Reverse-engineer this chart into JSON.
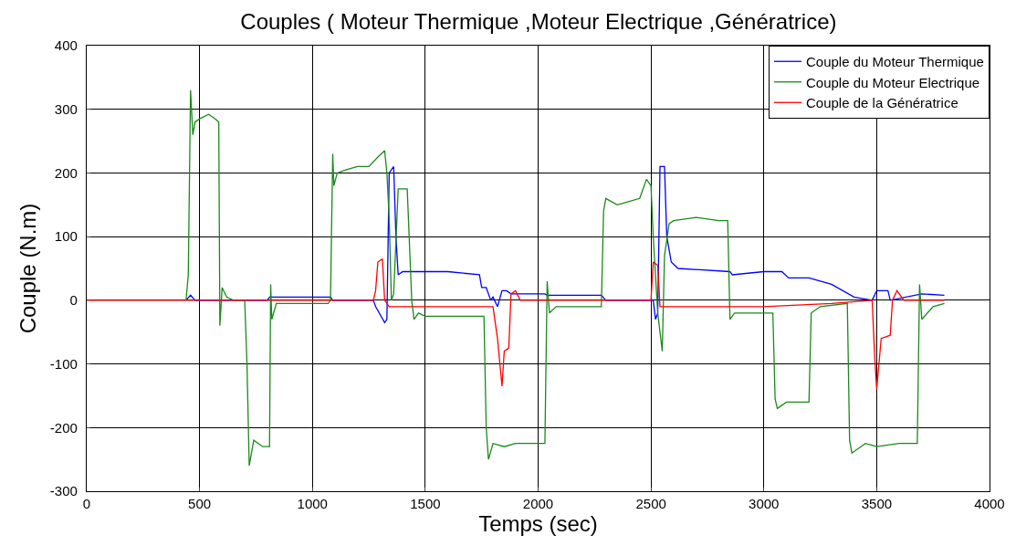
{
  "chart_data": {
    "type": "line",
    "title": "Couples ( Moteur Thermique ,Moteur Electrique ,Génératrice)",
    "xlabel": "Temps (sec)",
    "ylabel": "Couple (N.m)",
    "xlim": [
      0,
      4000
    ],
    "xticks": [
      0,
      500,
      1000,
      1500,
      2000,
      2500,
      3000,
      3500,
      4000
    ],
    "ylim": [
      -300,
      400
    ],
    "yticks": [
      -300,
      -200,
      -100,
      0,
      100,
      200,
      300,
      400
    ],
    "grid": true,
    "legend": "top right",
    "line_style": "solid",
    "marker": "none",
    "series": [
      {
        "name": "Couple du Moteur Thermique",
        "color": "#0000ff",
        "x": [
          440,
          460,
          480,
          800,
          810,
          1080,
          1090,
          1270,
          1280,
          1320,
          1330,
          1340,
          1360,
          1370,
          1380,
          1400,
          1600,
          1740,
          1750,
          1770,
          1790,
          1800,
          1820,
          1840,
          1860,
          1880,
          2030,
          2040,
          2280,
          2300,
          2510,
          2520,
          2530,
          2540,
          2560,
          2570,
          2590,
          2620,
          2850,
          2860,
          3000,
          3080,
          3110,
          3200,
          3300,
          3400,
          3480,
          3500,
          3550,
          3560,
          3700,
          3800
        ],
        "values": [
          0,
          8,
          0,
          0,
          5,
          5,
          0,
          0,
          -10,
          -35,
          -30,
          200,
          210,
          100,
          40,
          45,
          45,
          40,
          20,
          20,
          0,
          5,
          -10,
          15,
          15,
          10,
          10,
          8,
          8,
          0,
          0,
          -30,
          -20,
          210,
          210,
          100,
          60,
          50,
          45,
          40,
          45,
          45,
          35,
          35,
          25,
          5,
          0,
          15,
          15,
          0,
          10,
          8
        ]
      },
      {
        "name": "Couple du Moteur Electrique",
        "color": "#1a8a1a",
        "x": [
          440,
          450,
          460,
          470,
          480,
          500,
          540,
          570,
          585,
          590,
          600,
          620,
          650,
          700,
          710,
          720,
          740,
          780,
          810,
          815,
          820,
          840,
          900,
          1070,
          1080,
          1090,
          1095,
          1110,
          1150,
          1200,
          1250,
          1290,
          1320,
          1330,
          1340,
          1350,
          1360,
          1380,
          1420,
          1440,
          1450,
          1470,
          1500,
          1760,
          1770,
          1780,
          1800,
          1850,
          1900,
          2000,
          2030,
          2040,
          2050,
          2080,
          2280,
          2290,
          2300,
          2350,
          2400,
          2450,
          2480,
          2500,
          2510,
          2530,
          2550,
          2560,
          2580,
          2600,
          2700,
          2800,
          2840,
          2850,
          2870,
          3040,
          3050,
          3060,
          3100,
          3200,
          3210,
          3250,
          3370,
          3380,
          3390,
          3450,
          3500,
          3600,
          3680,
          3690,
          3700,
          3750,
          3800
        ],
        "values": [
          0,
          40,
          330,
          260,
          280,
          285,
          292,
          285,
          280,
          -40,
          20,
          5,
          0,
          0,
          -100,
          -260,
          -220,
          -230,
          -230,
          25,
          -30,
          -5,
          -5,
          -5,
          0,
          230,
          180,
          200,
          205,
          210,
          210,
          225,
          235,
          200,
          130,
          0,
          10,
          175,
          175,
          0,
          -30,
          -20,
          -25,
          -25,
          -200,
          -250,
          -225,
          -230,
          -225,
          -225,
          -225,
          30,
          -20,
          -10,
          -10,
          140,
          160,
          150,
          155,
          160,
          190,
          180,
          100,
          -20,
          -80,
          70,
          120,
          125,
          130,
          125,
          125,
          -30,
          -20,
          -20,
          -155,
          -170,
          -160,
          -160,
          -20,
          -10,
          -5,
          -220,
          -240,
          -225,
          -230,
          -225,
          -225,
          25,
          -30,
          -10,
          -5
        ]
      },
      {
        "name": "Couple de la Génératrice",
        "color": "#ff0000",
        "x": [
          0,
          1270,
          1280,
          1290,
          1310,
          1320,
          1340,
          1800,
          1820,
          1840,
          1850,
          1870,
          1880,
          1900,
          1920,
          2500,
          2510,
          2530,
          2540,
          3000,
          3300,
          3480,
          3490,
          3500,
          3520,
          3560,
          3570,
          3590,
          3620,
          3800
        ],
        "values": [
          0,
          0,
          15,
          60,
          65,
          0,
          -10,
          -10,
          -60,
          -135,
          -80,
          -75,
          10,
          15,
          0,
          0,
          60,
          55,
          -10,
          -10,
          -5,
          0,
          -80,
          -140,
          -60,
          -55,
          0,
          15,
          0,
          0
        ]
      }
    ]
  }
}
